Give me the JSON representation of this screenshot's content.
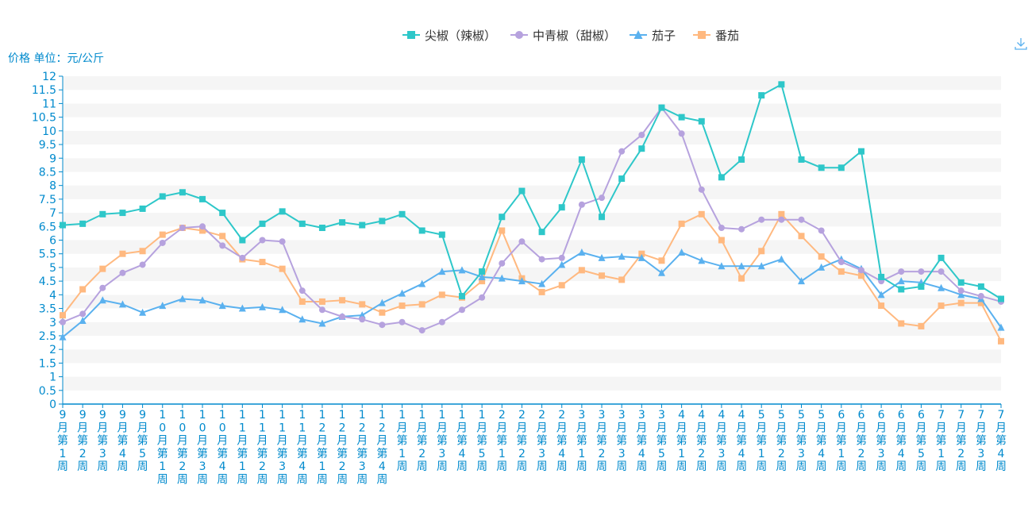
{
  "chart_data": {
    "type": "line",
    "title": "",
    "ylabel": "价格 单位：元/公斤",
    "xlabel": "",
    "ylim": [
      0,
      12
    ],
    "y_ticks": [
      "0",
      "0.5",
      "1",
      "1.5",
      "2",
      "2.5",
      "3",
      "3.5",
      "4",
      "4.5",
      "5",
      "5.5",
      "6",
      "6.5",
      "7",
      "7.5",
      "8",
      "8.5",
      "9",
      "9.5",
      "10",
      "10.5",
      "11",
      "11.5",
      "12"
    ],
    "legend_position": "top-center",
    "grid": "horizontal alternating bands",
    "categories": [
      "9月第1周",
      "9月第2周",
      "9月第3周",
      "9月第4周",
      "9月第5周",
      "10月第1周",
      "10月第2周",
      "10月第3周",
      "10月第4周",
      "11月第1周",
      "11月第2周",
      "11月第3周",
      "11月第4周",
      "12月第1周",
      "12月第2周",
      "12月第3周",
      "12月第4周",
      "1月第1周",
      "1月第2周",
      "1月第3周",
      "1月第4周",
      "1月第5周",
      "2月第1周",
      "2月第2周",
      "2月第3周",
      "2月第4周",
      "3月第1周",
      "3月第2周",
      "3月第3周",
      "3月第4周",
      "3月第5周",
      "4月第1周",
      "4月第2周",
      "4月第3周",
      "4月第4周",
      "5月第1周",
      "5月第2周",
      "5月第3周",
      "5月第4周",
      "6月第1周",
      "6月第2周",
      "6月第3周",
      "6月第4周",
      "6月第5周",
      "7月第1周",
      "7月第2周",
      "7月第3周",
      "7月第4周"
    ],
    "series": [
      {
        "name": "尖椒（辣椒）",
        "color": "#2ec7c9",
        "marker": "square",
        "values": [
          6.55,
          6.6,
          6.95,
          7.0,
          7.15,
          7.6,
          7.75,
          7.5,
          7.0,
          6.0,
          6.6,
          7.05,
          6.6,
          6.45,
          6.65,
          6.55,
          6.7,
          6.95,
          6.35,
          6.2,
          3.95,
          4.85,
          6.85,
          7.8,
          6.3,
          7.2,
          8.95,
          6.85,
          8.25,
          9.35,
          10.85,
          10.5,
          10.35,
          8.3,
          8.95,
          11.3,
          11.7,
          8.95,
          8.65,
          8.65,
          9.25,
          4.65,
          4.2,
          4.3,
          5.35,
          4.45,
          4.3,
          3.85
        ]
      },
      {
        "name": "中青椒（甜椒）",
        "color": "#b6a2de",
        "marker": "circle",
        "values": [
          3.0,
          3.3,
          4.25,
          4.8,
          5.1,
          5.9,
          6.45,
          6.5,
          5.8,
          5.35,
          6.0,
          5.95,
          4.15,
          3.45,
          3.2,
          3.1,
          2.9,
          3.0,
          2.7,
          3.0,
          3.45,
          3.9,
          5.15,
          5.95,
          5.3,
          5.35,
          7.3,
          7.55,
          9.25,
          9.85,
          10.85,
          9.9,
          7.85,
          6.45,
          6.4,
          6.75,
          6.75,
          6.75,
          6.35,
          5.2,
          4.9,
          4.5,
          4.85,
          4.85,
          4.85,
          4.15,
          3.95,
          3.75
        ]
      },
      {
        "name": "茄子",
        "color": "#5ab1ef",
        "marker": "triangle",
        "values": [
          2.45,
          3.05,
          3.8,
          3.65,
          3.35,
          3.6,
          3.85,
          3.8,
          3.6,
          3.5,
          3.55,
          3.45,
          3.1,
          2.95,
          3.2,
          3.25,
          3.7,
          4.05,
          4.4,
          4.85,
          4.9,
          4.65,
          4.6,
          4.5,
          4.4,
          5.1,
          5.55,
          5.35,
          5.4,
          5.35,
          4.8,
          5.55,
          5.25,
          5.05,
          5.05,
          5.05,
          5.3,
          4.5,
          5.0,
          5.3,
          4.95,
          4.0,
          4.5,
          4.45,
          4.25,
          4.0,
          3.85,
          2.8
        ]
      },
      {
        "name": "番茄",
        "color": "#ffb980",
        "marker": "square",
        "values": [
          3.25,
          4.2,
          4.95,
          5.5,
          5.6,
          6.2,
          6.45,
          6.35,
          6.15,
          5.3,
          5.2,
          4.95,
          3.75,
          3.75,
          3.8,
          3.65,
          3.35,
          3.6,
          3.65,
          4.0,
          3.9,
          4.5,
          6.35,
          4.6,
          4.1,
          4.35,
          4.9,
          4.7,
          4.55,
          5.5,
          5.25,
          6.6,
          6.95,
          6.0,
          4.6,
          5.6,
          6.95,
          6.15,
          5.4,
          4.85,
          4.7,
          3.6,
          2.95,
          2.85,
          3.6,
          3.7,
          3.7,
          2.3
        ]
      }
    ]
  },
  "toolbox": {
    "download_icon": "download-icon"
  },
  "theme": {
    "axis_color": "#008acd",
    "band_color": "#f5f5f5",
    "text_color": "#008acd"
  }
}
